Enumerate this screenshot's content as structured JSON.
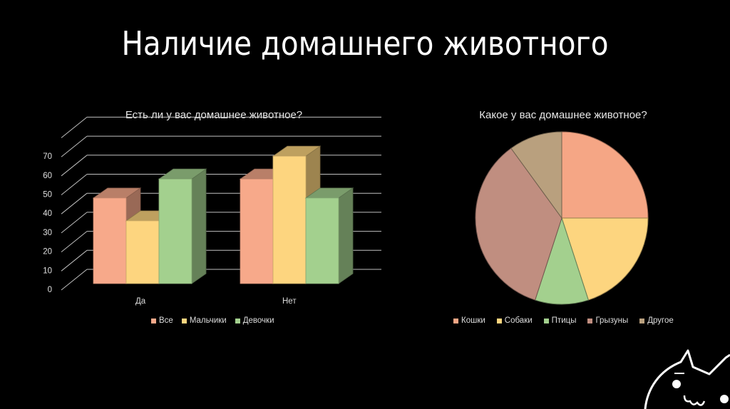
{
  "slide": {
    "title": "Наличие домашнего животного"
  },
  "colors": {
    "background": "#000000",
    "series": [
      "#f7a98a",
      "#fdd57f",
      "#a3d08e"
    ],
    "pie": [
      "#f5a685",
      "#fdd57f",
      "#a3d08e",
      "#c08e80",
      "#b9a07e"
    ]
  },
  "chart_data": [
    {
      "type": "bar",
      "style": "3d-clustered-column",
      "title": "Есть ли у вас домашнее животное?",
      "categories": [
        "Да",
        "Нет"
      ],
      "series": [
        {
          "name": "Все",
          "values": [
            45,
            55
          ]
        },
        {
          "name": "Мальчики",
          "values": [
            33,
            67
          ]
        },
        {
          "name": "Девочки",
          "values": [
            55,
            45
          ]
        }
      ],
      "xlabel": "",
      "ylabel": "",
      "yticks": [
        0,
        10,
        20,
        30,
        40,
        50,
        60,
        70
      ],
      "ylim": [
        0,
        80
      ],
      "grid": true,
      "legend_position": "bottom"
    },
    {
      "type": "pie",
      "title": "Какое у вас домашнее животное?",
      "categories": [
        "Кошки",
        "Собаки",
        "Птицы",
        "Грызуны",
        "Другое"
      ],
      "values": [
        25,
        20,
        10,
        35,
        10
      ],
      "legend_position": "bottom"
    }
  ]
}
